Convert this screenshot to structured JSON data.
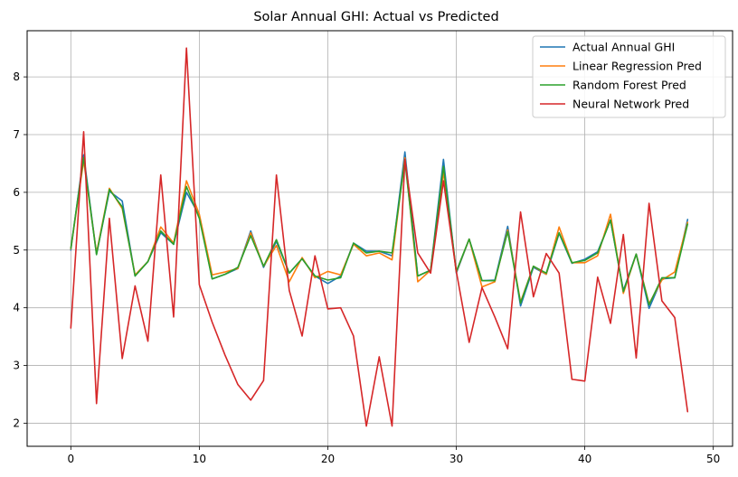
{
  "chart_data": {
    "type": "line",
    "title": "Solar Annual GHI: Actual vs Predicted",
    "xlabel": "",
    "ylabel": "",
    "xlim": [
      -3.4,
      51.5
    ],
    "ylim": [
      1.6,
      8.8
    ],
    "xticks": [
      0,
      10,
      20,
      30,
      40,
      50
    ],
    "yticks": [
      2,
      3,
      4,
      5,
      6,
      7,
      8
    ],
    "grid": true,
    "legend_position": "top-right",
    "x": [
      0,
      1,
      2,
      3,
      4,
      5,
      6,
      7,
      8,
      9,
      10,
      11,
      12,
      13,
      14,
      15,
      16,
      17,
      18,
      19,
      20,
      21,
      22,
      23,
      24,
      25,
      26,
      27,
      28,
      29,
      30,
      31,
      32,
      33,
      34,
      35,
      36,
      37,
      38,
      39,
      40,
      41,
      42,
      43,
      44,
      45,
      46,
      47,
      48
    ],
    "series": [
      {
        "name": "Actual Annual GHI",
        "color": "#1f77b4",
        "values": [
          5.0,
          6.65,
          4.93,
          6.02,
          5.85,
          4.55,
          4.8,
          5.3,
          5.1,
          6.0,
          5.6,
          4.5,
          4.58,
          4.68,
          5.33,
          4.7,
          5.15,
          4.6,
          4.85,
          4.55,
          4.42,
          4.55,
          5.12,
          4.98,
          4.98,
          4.9,
          6.7,
          4.55,
          4.65,
          6.57,
          4.6,
          5.19,
          4.47,
          4.48,
          5.41,
          4.03,
          4.7,
          4.58,
          5.29,
          4.77,
          4.84,
          4.97,
          5.52,
          4.3,
          4.93,
          3.99,
          4.5,
          4.52,
          5.53
        ]
      },
      {
        "name": "Linear Regression Pred",
        "color": "#ff7f0e",
        "values": [
          5.02,
          6.55,
          4.95,
          6.07,
          5.72,
          4.57,
          4.8,
          5.4,
          5.12,
          6.2,
          5.62,
          4.57,
          4.62,
          4.68,
          5.3,
          4.72,
          5.08,
          4.45,
          4.87,
          4.52,
          4.63,
          4.57,
          5.1,
          4.9,
          4.95,
          4.83,
          6.6,
          4.45,
          4.65,
          6.35,
          4.62,
          5.19,
          4.36,
          4.45,
          5.35,
          4.1,
          4.72,
          4.58,
          5.4,
          4.78,
          4.78,
          4.9,
          5.62,
          4.25,
          4.93,
          4.07,
          4.48,
          4.62,
          5.48
        ]
      },
      {
        "name": "Random Forest Pred",
        "color": "#2ca02c",
        "values": [
          5.03,
          6.6,
          4.92,
          6.05,
          5.75,
          4.55,
          4.8,
          5.33,
          5.1,
          6.1,
          5.55,
          4.5,
          4.58,
          4.7,
          5.25,
          4.72,
          5.18,
          4.6,
          4.85,
          4.55,
          4.48,
          4.52,
          5.12,
          4.95,
          4.98,
          4.95,
          6.55,
          4.55,
          4.65,
          6.45,
          4.63,
          5.19,
          4.47,
          4.47,
          5.32,
          4.08,
          4.72,
          4.6,
          5.3,
          4.78,
          4.82,
          4.95,
          5.52,
          4.28,
          4.93,
          4.05,
          4.52,
          4.52,
          5.45
        ]
      },
      {
        "name": "Neural Network Pred",
        "color": "#d62728",
        "values": [
          3.65,
          7.05,
          2.34,
          5.55,
          3.12,
          4.38,
          3.42,
          6.3,
          3.84,
          8.5,
          4.4,
          3.75,
          3.18,
          2.67,
          2.4,
          2.74,
          6.3,
          4.3,
          3.51,
          4.9,
          3.98,
          4.0,
          3.51,
          1.95,
          3.15,
          1.95,
          6.57,
          4.95,
          4.6,
          6.2,
          4.63,
          3.4,
          4.35,
          3.84,
          3.29,
          5.66,
          4.19,
          4.94,
          4.6,
          2.76,
          2.73,
          4.53,
          3.73,
          5.27,
          3.13,
          5.81,
          4.12,
          3.83,
          2.2
        ]
      }
    ]
  }
}
